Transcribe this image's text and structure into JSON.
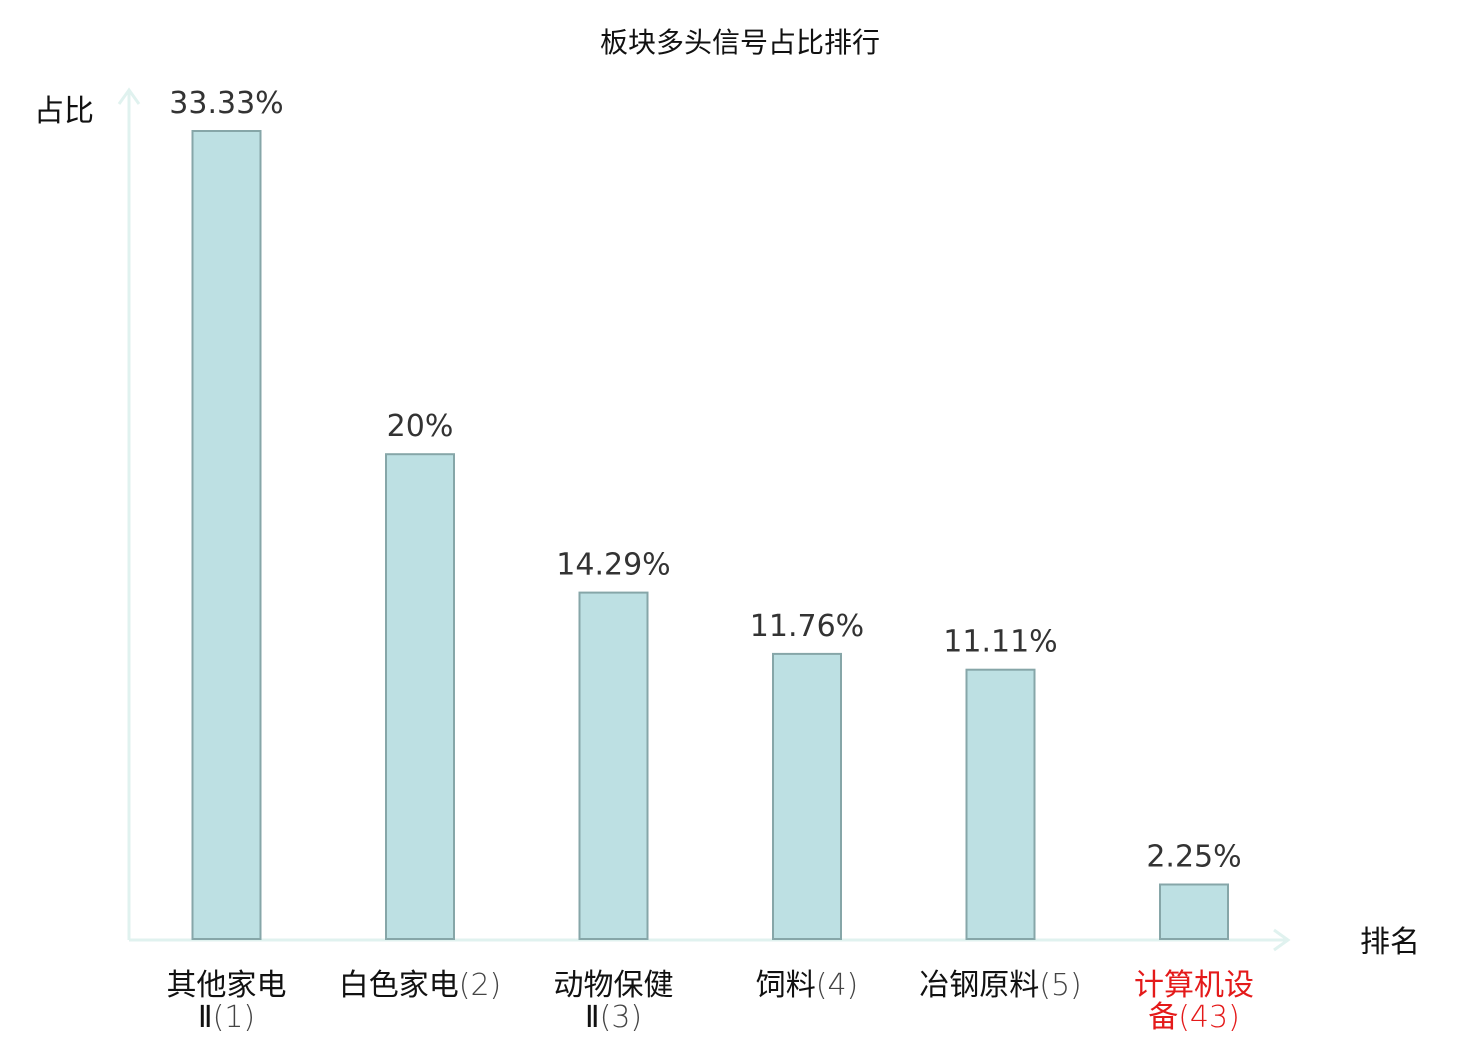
{
  "chart_data": {
    "type": "bar",
    "title": "板块多头信号占比排行",
    "ylabel": "占比",
    "xlabel": "排名",
    "ylim": [
      0,
      33.33
    ],
    "grid": false,
    "colors": {
      "bar_fill": "#bde0e3",
      "bar_stroke": "#86a6a8",
      "axis": "#e0f2ef",
      "highlight_text": "#e41a1a",
      "normal_text": "#111111",
      "rank_text": "#444444",
      "value_text": "#333333"
    },
    "bars": [
      {
        "name_lines": [
          "其他家电",
          "Ⅱ"
        ],
        "rank": "(1)",
        "value": 33.33,
        "label": "33.33%",
        "highlight": false
      },
      {
        "name_lines": [
          "白色家电"
        ],
        "rank": "(2)",
        "value": 20,
        "label": "20%",
        "highlight": false
      },
      {
        "name_lines": [
          "动物保健",
          "Ⅱ"
        ],
        "rank": "(3)",
        "value": 14.29,
        "label": "14.29%",
        "highlight": false
      },
      {
        "name_lines": [
          "饲料"
        ],
        "rank": "(4)",
        "value": 11.76,
        "label": "11.76%",
        "highlight": false
      },
      {
        "name_lines": [
          "冶钢原料"
        ],
        "rank": "(5)",
        "value": 11.11,
        "label": "11.11%",
        "highlight": false
      },
      {
        "name_lines": [
          "计算机设",
          "备"
        ],
        "rank": "(43)",
        "value": 2.25,
        "label": "2.25%",
        "highlight": true
      }
    ]
  }
}
